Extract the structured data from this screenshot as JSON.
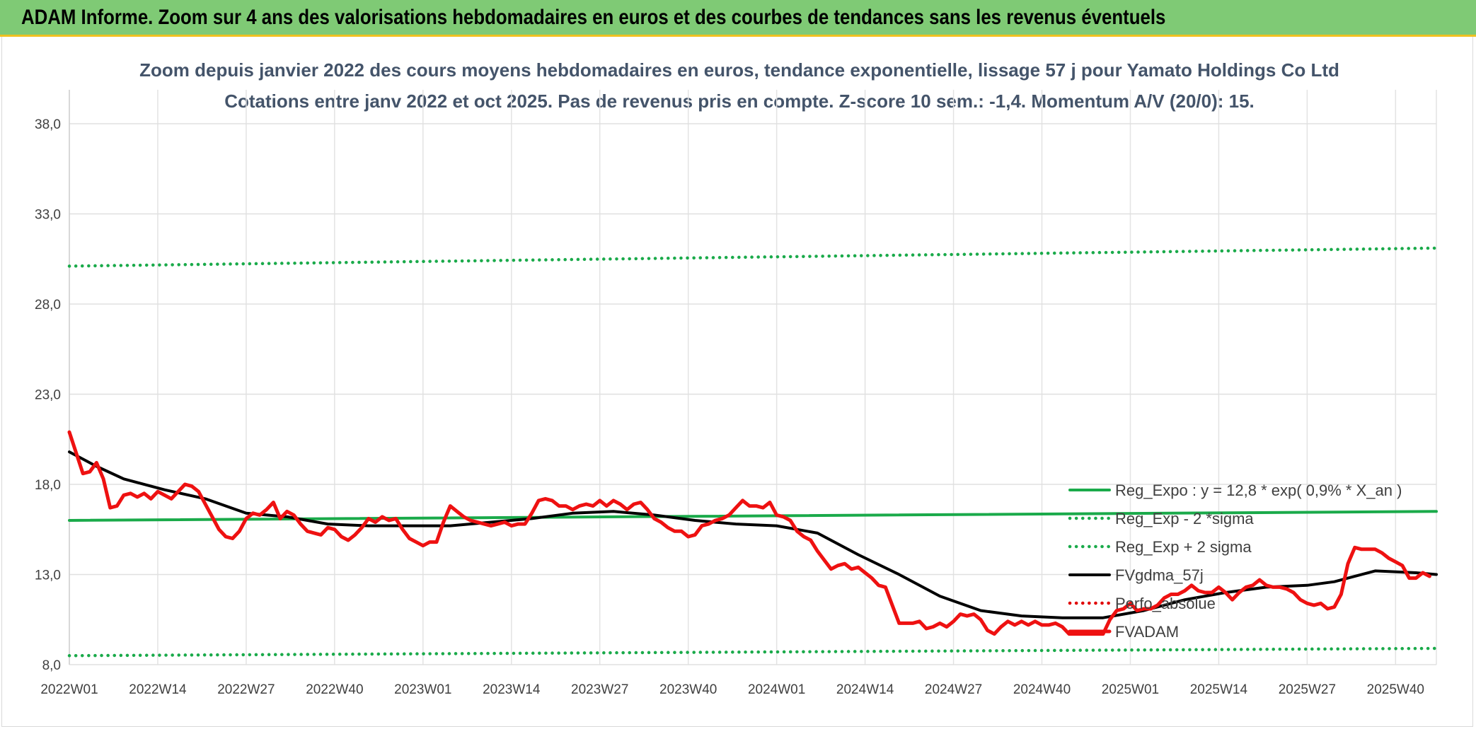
{
  "banner": {
    "title": "ADAM Informe. Zoom sur 4 ans des valorisations hebdomadaires en euros et des courbes de tendances sans les revenus éventuels"
  },
  "chart_data": {
    "type": "line",
    "title": "Zoom depuis janvier 2022 des cours moyens hebdomadaires en euros, tendance exponentielle, lissage 57 j pour Yamato Holdings Co Ltd",
    "subtitle": "Cotations entre janv 2022 et oct 2025. Pas de revenus pris en compte. Z-score 10 sem.: -1,4. Momentum A/V (20/0): 15.",
    "xlabel": "",
    "ylabel": "",
    "x_ticks": [
      "2022W01",
      "2022W14",
      "2022W27",
      "2022W40",
      "2023W01",
      "2023W14",
      "2023W27",
      "2023W40",
      "2024W01",
      "2024W14",
      "2024W27",
      "2024W40",
      "2025W01",
      "2025W14",
      "2025W27",
      "2025W40"
    ],
    "x_tick_index": [
      0,
      13,
      26,
      39,
      52,
      65,
      78,
      91,
      104,
      117,
      130,
      143,
      156,
      169,
      182,
      195
    ],
    "x_range": [
      0,
      201
    ],
    "y_ticks": [
      "8,0",
      "13,0",
      "18,0",
      "23,0",
      "28,0",
      "33,0",
      "38,0"
    ],
    "ylim": [
      8,
      38
    ],
    "grid": true,
    "legend_position": "right",
    "series": [
      {
        "name": "Reg_Expo : y = 12,8 * exp( 0,9% *  X_an )",
        "color": "#1aaa4a",
        "style": "solid",
        "points": [
          [
            0,
            16.0
          ],
          [
            201,
            16.5
          ]
        ]
      },
      {
        "name": "Reg_Exp - 2 *sigma",
        "color": "#1aaa4a",
        "style": "dotted",
        "points": [
          [
            0,
            8.5
          ],
          [
            201,
            8.9
          ]
        ]
      },
      {
        "name": "Reg_Exp + 2 sigma",
        "color": "#1aaa4a",
        "style": "dotted",
        "points": [
          [
            0,
            30.1
          ],
          [
            201,
            31.1
          ]
        ]
      },
      {
        "name": "FVgdma_57j",
        "color": "#000000",
        "style": "solid",
        "points": [
          [
            0,
            19.8
          ],
          [
            4,
            19.0
          ],
          [
            8,
            18.3
          ],
          [
            14,
            17.7
          ],
          [
            20,
            17.2
          ],
          [
            26,
            16.4
          ],
          [
            32,
            16.2
          ],
          [
            38,
            15.8
          ],
          [
            44,
            15.7
          ],
          [
            50,
            15.7
          ],
          [
            56,
            15.7
          ],
          [
            62,
            15.9
          ],
          [
            68,
            16.1
          ],
          [
            74,
            16.4
          ],
          [
            80,
            16.5
          ],
          [
            86,
            16.3
          ],
          [
            92,
            16.0
          ],
          [
            98,
            15.8
          ],
          [
            104,
            15.7
          ],
          [
            110,
            15.3
          ],
          [
            116,
            14.1
          ],
          [
            122,
            13.0
          ],
          [
            128,
            11.8
          ],
          [
            134,
            11.0
          ],
          [
            140,
            10.7
          ],
          [
            146,
            10.6
          ],
          [
            152,
            10.6
          ],
          [
            158,
            11.0
          ],
          [
            164,
            11.6
          ],
          [
            170,
            12.0
          ],
          [
            176,
            12.3
          ],
          [
            182,
            12.4
          ],
          [
            186,
            12.6
          ],
          [
            192,
            13.2
          ],
          [
            198,
            13.1
          ],
          [
            201,
            13.0
          ]
        ]
      },
      {
        "name": "Perfo_absolue",
        "color": "#e00000",
        "style": "dotted",
        "points": []
      },
      {
        "name": "FVADAM",
        "color": "#ee1111",
        "style": "solid",
        "points": [
          [
            0,
            20.9
          ],
          [
            2,
            18.6
          ],
          [
            3,
            18.7
          ],
          [
            4,
            19.2
          ],
          [
            5,
            18.3
          ],
          [
            6,
            16.7
          ],
          [
            7,
            16.8
          ],
          [
            8,
            17.4
          ],
          [
            9,
            17.5
          ],
          [
            10,
            17.3
          ],
          [
            11,
            17.5
          ],
          [
            12,
            17.2
          ],
          [
            13,
            17.6
          ],
          [
            14,
            17.4
          ],
          [
            15,
            17.2
          ],
          [
            16,
            17.6
          ],
          [
            17,
            18.0
          ],
          [
            18,
            17.9
          ],
          [
            19,
            17.6
          ],
          [
            20,
            16.9
          ],
          [
            21,
            16.2
          ],
          [
            22,
            15.5
          ],
          [
            23,
            15.1
          ],
          [
            24,
            15.0
          ],
          [
            25,
            15.4
          ],
          [
            26,
            16.1
          ],
          [
            27,
            16.4
          ],
          [
            28,
            16.3
          ],
          [
            29,
            16.6
          ],
          [
            30,
            17.0
          ],
          [
            31,
            16.1
          ],
          [
            32,
            16.5
          ],
          [
            33,
            16.3
          ],
          [
            34,
            15.8
          ],
          [
            35,
            15.4
          ],
          [
            36,
            15.3
          ],
          [
            37,
            15.2
          ],
          [
            38,
            15.6
          ],
          [
            39,
            15.5
          ],
          [
            40,
            15.1
          ],
          [
            41,
            14.9
          ],
          [
            42,
            15.2
          ],
          [
            43,
            15.6
          ],
          [
            44,
            16.1
          ],
          [
            45,
            15.9
          ],
          [
            46,
            16.2
          ],
          [
            47,
            16.0
          ],
          [
            48,
            16.1
          ],
          [
            49,
            15.5
          ],
          [
            50,
            15.0
          ],
          [
            51,
            14.8
          ],
          [
            52,
            14.6
          ],
          [
            53,
            14.8
          ],
          [
            54,
            14.8
          ],
          [
            55,
            15.9
          ],
          [
            56,
            16.8
          ],
          [
            57,
            16.5
          ],
          [
            58,
            16.2
          ],
          [
            59,
            16.0
          ],
          [
            60,
            15.9
          ],
          [
            61,
            15.8
          ],
          [
            62,
            15.7
          ],
          [
            63,
            15.8
          ],
          [
            64,
            15.9
          ],
          [
            65,
            15.7
          ],
          [
            66,
            15.8
          ],
          [
            67,
            15.8
          ],
          [
            68,
            16.4
          ],
          [
            69,
            17.1
          ],
          [
            70,
            17.2
          ],
          [
            71,
            17.1
          ],
          [
            72,
            16.8
          ],
          [
            73,
            16.8
          ],
          [
            74,
            16.6
          ],
          [
            75,
            16.8
          ],
          [
            76,
            16.9
          ],
          [
            77,
            16.8
          ],
          [
            78,
            17.1
          ],
          [
            79,
            16.8
          ],
          [
            80,
            17.1
          ],
          [
            81,
            16.9
          ],
          [
            82,
            16.6
          ],
          [
            83,
            16.9
          ],
          [
            84,
            17.0
          ],
          [
            85,
            16.6
          ],
          [
            86,
            16.1
          ],
          [
            87,
            15.9
          ],
          [
            88,
            15.6
          ],
          [
            89,
            15.4
          ],
          [
            90,
            15.4
          ],
          [
            91,
            15.1
          ],
          [
            92,
            15.2
          ],
          [
            93,
            15.7
          ],
          [
            94,
            15.8
          ],
          [
            95,
            16.0
          ],
          [
            96,
            16.1
          ],
          [
            97,
            16.3
          ],
          [
            98,
            16.7
          ],
          [
            99,
            17.1
          ],
          [
            100,
            16.8
          ],
          [
            101,
            16.8
          ],
          [
            102,
            16.7
          ],
          [
            103,
            17.0
          ],
          [
            104,
            16.3
          ],
          [
            105,
            16.2
          ],
          [
            106,
            16.0
          ],
          [
            107,
            15.4
          ],
          [
            108,
            15.1
          ],
          [
            109,
            14.9
          ],
          [
            110,
            14.3
          ],
          [
            111,
            13.8
          ],
          [
            112,
            13.3
          ],
          [
            113,
            13.5
          ],
          [
            114,
            13.6
          ],
          [
            115,
            13.3
          ],
          [
            116,
            13.4
          ],
          [
            117,
            13.1
          ],
          [
            118,
            12.8
          ],
          [
            119,
            12.4
          ],
          [
            120,
            12.3
          ],
          [
            121,
            11.3
          ],
          [
            122,
            10.3
          ],
          [
            123,
            10.3
          ],
          [
            124,
            10.3
          ],
          [
            125,
            10.4
          ],
          [
            126,
            10.0
          ],
          [
            127,
            10.1
          ],
          [
            128,
            10.3
          ],
          [
            129,
            10.1
          ],
          [
            130,
            10.4
          ],
          [
            131,
            10.8
          ],
          [
            132,
            10.7
          ],
          [
            133,
            10.8
          ],
          [
            134,
            10.5
          ],
          [
            135,
            9.9
          ],
          [
            136,
            9.7
          ],
          [
            137,
            10.1
          ],
          [
            138,
            10.4
          ],
          [
            139,
            10.2
          ],
          [
            140,
            10.4
          ],
          [
            141,
            10.2
          ],
          [
            142,
            10.4
          ],
          [
            143,
            10.2
          ],
          [
            144,
            10.2
          ],
          [
            145,
            10.3
          ],
          [
            146,
            10.1
          ],
          [
            147,
            9.7
          ],
          [
            148,
            9.7
          ],
          [
            149,
            9.7
          ],
          [
            150,
            9.7
          ],
          [
            151,
            9.7
          ],
          [
            152,
            9.7
          ],
          [
            153,
            10.5
          ],
          [
            154,
            11.0
          ],
          [
            155,
            11.1
          ],
          [
            156,
            11.4
          ],
          [
            157,
            11.0
          ],
          [
            158,
            11.1
          ],
          [
            159,
            11.1
          ],
          [
            160,
            11.3
          ],
          [
            161,
            11.7
          ],
          [
            162,
            11.9
          ],
          [
            163,
            11.9
          ],
          [
            164,
            12.1
          ],
          [
            165,
            12.4
          ],
          [
            166,
            12.1
          ],
          [
            167,
            12.0
          ],
          [
            168,
            12.0
          ],
          [
            169,
            12.3
          ],
          [
            170,
            12.0
          ],
          [
            171,
            11.6
          ],
          [
            172,
            12.0
          ],
          [
            173,
            12.3
          ],
          [
            174,
            12.4
          ],
          [
            175,
            12.7
          ],
          [
            176,
            12.4
          ],
          [
            177,
            12.3
          ],
          [
            178,
            12.3
          ],
          [
            179,
            12.2
          ],
          [
            180,
            12.0
          ],
          [
            181,
            11.6
          ],
          [
            182,
            11.4
          ],
          [
            183,
            11.3
          ],
          [
            184,
            11.4
          ],
          [
            185,
            11.1
          ],
          [
            186,
            11.2
          ],
          [
            187,
            11.9
          ],
          [
            188,
            13.6
          ],
          [
            189,
            14.5
          ],
          [
            190,
            14.4
          ],
          [
            191,
            14.4
          ],
          [
            192,
            14.4
          ],
          [
            193,
            14.2
          ],
          [
            194,
            13.9
          ],
          [
            195,
            13.7
          ],
          [
            196,
            13.5
          ],
          [
            197,
            12.8
          ],
          [
            198,
            12.8
          ],
          [
            199,
            13.1
          ],
          [
            200,
            12.9
          ]
        ]
      }
    ]
  }
}
